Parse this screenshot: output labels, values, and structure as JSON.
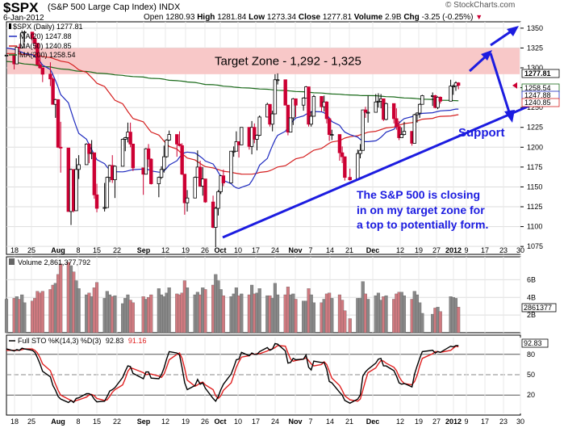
{
  "header": {
    "symbol": "$SPX",
    "description": "(S&P 500 Large Cap Index) INDX",
    "date": "6-Jan-2012",
    "open_label": "Open",
    "open": "1280.93",
    "high_label": "High",
    "high": "1281.84",
    "low_label": "Low",
    "low": "1273.34",
    "close_label": "Close",
    "close": "1277.81",
    "volume_label": "Volume",
    "volume": "2.9B",
    "chg_label": "Chg",
    "chg": "-3.25 (-0.25%)",
    "brand": "© StockCharts.com"
  },
  "colors": {
    "up_bar": "#000000",
    "down_bar": "#cc0033",
    "ma20": "#1f2bbf",
    "ma50": "#d52020",
    "ma200": "#1a6a1a",
    "target_zone": "#f8c8c8",
    "annotation": "#1c1ce0",
    "volume_up": "#888888",
    "volume_down": "#d07a80",
    "sto_k": "#000000",
    "sto_d": "#e02020"
  },
  "legend": {
    "price": "$SPX (Daily) 1277.81",
    "ma20": "MA(20) 1247.88",
    "ma50": "MA(50) 1240.85",
    "ma200": "MA(200) 1258.54"
  },
  "annotations": {
    "target_zone": "Target Zone - 1,292 - 1,325",
    "support": "Support",
    "note_line1": "The S&P 500 is closing",
    "note_line2": "in on my target zone for",
    "note_line3": "a top to potentially form."
  },
  "price_axis": {
    "ticks": [
      "1350",
      "1325",
      "1300",
      "1275",
      "1250",
      "1225",
      "1200",
      "1175",
      "1150",
      "1125",
      "1100",
      "1075"
    ],
    "tags": [
      "1277.81",
      "1258.54",
      "1247.88",
      "1240.85"
    ]
  },
  "x_axis": {
    "labels": [
      "18",
      "25",
      "Aug",
      "8",
      "15",
      "22",
      "Sep",
      "12",
      "19",
      "26",
      "Oct",
      "10",
      "17",
      "24",
      "Nov",
      "7",
      "14",
      "21",
      "Dec",
      "12",
      "19",
      "27",
      "2012",
      "9",
      "17",
      "23",
      "30"
    ]
  },
  "volume_panel": {
    "label": "Volume 2,861,377,792",
    "ticks": [
      "6B",
      "4B",
      "2B"
    ],
    "tag": "2861377"
  },
  "sto_panel": {
    "label_prefix": "Full STO %K(14,3) %D(3)",
    "k_value": "92.83",
    "d_value": "91.16",
    "ticks": [
      "80",
      "50",
      "20"
    ],
    "tag": "92.83"
  },
  "chart_data": {
    "type": "candlestick",
    "title": "$SPX (S&P 500 Large Cap Index) INDX",
    "x_range": [
      "2011-07-15",
      "2012-01-30"
    ],
    "ylim": [
      1065,
      1358
    ],
    "target_zone": [
      1292,
      1325
    ],
    "x": [
      "2011-07-15",
      "2011-07-18",
      "2011-07-19",
      "2011-07-20",
      "2011-07-21",
      "2011-07-22",
      "2011-07-25",
      "2011-07-26",
      "2011-07-27",
      "2011-07-28",
      "2011-07-29",
      "2011-08-01",
      "2011-08-02",
      "2011-08-03",
      "2011-08-04",
      "2011-08-05",
      "2011-08-08",
      "2011-08-09",
      "2011-08-10",
      "2011-08-11",
      "2011-08-12",
      "2011-08-15",
      "2011-08-16",
      "2011-08-17",
      "2011-08-18",
      "2011-08-19",
      "2011-08-22",
      "2011-08-23",
      "2011-08-24",
      "2011-08-25",
      "2011-08-26",
      "2011-08-29",
      "2011-08-30",
      "2011-08-31",
      "2011-09-01",
      "2011-09-02",
      "2011-09-06",
      "2011-09-07",
      "2011-09-08",
      "2011-09-09",
      "2011-09-12",
      "2011-09-13",
      "2011-09-14",
      "2011-09-15",
      "2011-09-16",
      "2011-09-19",
      "2011-09-20",
      "2011-09-21",
      "2011-09-22",
      "2011-09-23",
      "2011-09-26",
      "2011-09-27",
      "2011-09-28",
      "2011-09-29",
      "2011-09-30",
      "2011-10-03",
      "2011-10-04",
      "2011-10-05",
      "2011-10-06",
      "2011-10-07",
      "2011-10-10",
      "2011-10-11",
      "2011-10-12",
      "2011-10-13",
      "2011-10-14",
      "2011-10-17",
      "2011-10-18",
      "2011-10-19",
      "2011-10-20",
      "2011-10-21",
      "2011-10-24",
      "2011-10-25",
      "2011-10-26",
      "2011-10-27",
      "2011-10-28",
      "2011-10-31",
      "2011-11-01",
      "2011-11-02",
      "2011-11-03",
      "2011-11-04",
      "2011-11-07",
      "2011-11-08",
      "2011-11-09",
      "2011-11-10",
      "2011-11-11",
      "2011-11-14",
      "2011-11-15",
      "2011-11-16",
      "2011-11-17",
      "2011-11-18",
      "2011-11-21",
      "2011-11-22",
      "2011-11-23",
      "2011-11-25",
      "2011-11-28",
      "2011-11-29",
      "2011-11-30",
      "2011-12-01",
      "2011-12-02",
      "2011-12-05",
      "2011-12-06",
      "2011-12-07",
      "2011-12-08",
      "2011-12-09",
      "2011-12-12",
      "2011-12-13",
      "2011-12-14",
      "2011-12-15",
      "2011-12-16",
      "2011-12-19",
      "2011-12-20",
      "2011-12-21",
      "2011-12-22",
      "2011-12-23",
      "2011-12-27",
      "2011-12-28",
      "2011-12-29",
      "2011-12-30",
      "2012-01-03",
      "2012-01-04",
      "2012-01-05",
      "2012-01-06"
    ],
    "close": [
      1316,
      1305,
      1326,
      1325,
      1344,
      1345,
      1337,
      1331,
      1304,
      1300,
      1292,
      1286,
      1254,
      1260,
      1200,
      1199,
      1119,
      1172,
      1120,
      1172,
      1178,
      1204,
      1192,
      1193,
      1140,
      1123,
      1124,
      1162,
      1177,
      1159,
      1176,
      1210,
      1212,
      1219,
      1204,
      1174,
      1166,
      1198,
      1185,
      1154,
      1162,
      1172,
      1188,
      1209,
      1216,
      1204,
      1202,
      1166,
      1130,
      1136,
      1162,
      1175,
      1151,
      1160,
      1131,
      1099,
      1123,
      1144,
      1164,
      1155,
      1195,
      1195,
      1207,
      1203,
      1225,
      1201,
      1225,
      1210,
      1215,
      1238,
      1254,
      1229,
      1242,
      1285,
      1285,
      1253,
      1219,
      1237,
      1261,
      1253,
      1262,
      1276,
      1229,
      1239,
      1264,
      1251,
      1257,
      1236,
      1216,
      1216,
      1193,
      1188,
      1162,
      1159,
      1192,
      1196,
      1247,
      1244,
      1244,
      1257,
      1258,
      1261,
      1235,
      1255,
      1236,
      1226,
      1212,
      1216,
      1220,
      1205,
      1241,
      1243,
      1254,
      1265,
      1265,
      1250,
      1263,
      1258,
      1277,
      1277,
      1281,
      1278
    ],
    "high": [
      1320,
      1316,
      1328,
      1330,
      1347,
      1347,
      1345,
      1339,
      1330,
      1316,
      1300,
      1307,
      1288,
      1261,
      1260,
      1232,
      1199,
      1173,
      1172,
      1186,
      1190,
      1205,
      1205,
      1209,
      1190,
      1154,
      1155,
      1163,
      1178,
      1190,
      1177,
      1211,
      1213,
      1231,
      1231,
      1203,
      1174,
      1199,
      1204,
      1186,
      1163,
      1176,
      1202,
      1210,
      1221,
      1216,
      1220,
      1205,
      1165,
      1146,
      1163,
      1196,
      1183,
      1175,
      1159,
      1139,
      1125,
      1146,
      1165,
      1172,
      1195,
      1201,
      1220,
      1204,
      1225,
      1225,
      1233,
      1230,
      1216,
      1240,
      1256,
      1254,
      1246,
      1292,
      1293,
      1284,
      1253,
      1237,
      1262,
      1260,
      1263,
      1277,
      1266,
      1245,
      1266,
      1264,
      1265,
      1258,
      1235,
      1222,
      1216,
      1201,
      1187,
      1173,
      1197,
      1204,
      1247,
      1251,
      1265,
      1267,
      1268,
      1267,
      1260,
      1256,
      1255,
      1249,
      1233,
      1225,
      1232,
      1220,
      1242,
      1244,
      1255,
      1266,
      1269,
      1266,
      1264,
      1264,
      1285,
      1279,
      1283,
      1282
    ],
    "low": [
      1308,
      1298,
      1306,
      1318,
      1325,
      1332,
      1331,
      1323,
      1304,
      1299,
      1282,
      1277,
      1254,
      1237,
      1199,
      1168,
      1119,
      1102,
      1118,
      1128,
      1160,
      1178,
      1180,
      1185,
      1135,
      1118,
      1119,
      1125,
      1156,
      1155,
      1136,
      1178,
      1195,
      1206,
      1200,
      1170,
      1140,
      1167,
      1175,
      1153,
      1137,
      1160,
      1168,
      1187,
      1208,
      1188,
      1201,
      1165,
      1115,
      1119,
      1137,
      1171,
      1150,
      1139,
      1130,
      1098,
      1074,
      1114,
      1141,
      1151,
      1165,
      1188,
      1196,
      1187,
      1207,
      1197,
      1191,
      1205,
      1196,
      1214,
      1238,
      1226,
      1220,
      1242,
      1279,
      1253,
      1215,
      1221,
      1228,
      1238,
      1246,
      1262,
      1226,
      1226,
      1241,
      1245,
      1245,
      1230,
      1208,
      1209,
      1183,
      1180,
      1158,
      1158,
      1172,
      1186,
      1202,
      1237,
      1231,
      1244,
      1250,
      1249,
      1233,
      1234,
      1230,
      1222,
      1209,
      1212,
      1215,
      1202,
      1211,
      1231,
      1237,
      1254,
      1252,
      1249,
      1248,
      1255,
      1259,
      1266,
      1271,
      1273
    ]
  },
  "ma_data": {
    "ma20": [
      1325,
      1323,
      1321,
      1320,
      1318,
      1316,
      1313,
      1309,
      1303,
      1296,
      1287,
      1277,
      1265,
      1252,
      1239,
      1227,
      1216,
      1207,
      1199,
      1191,
      1183,
      1177,
      1172,
      1170,
      1169,
      1169,
      1170,
      1171,
      1172,
      1173,
      1172,
      1170,
      1168,
      1169,
      1173,
      1178,
      1185,
      1190,
      1193,
      1194,
      1192,
      1189,
      1186,
      1182,
      1177,
      1170,
      1163,
      1157,
      1152,
      1149,
      1148,
      1150,
      1155,
      1162,
      1170,
      1180,
      1191,
      1201,
      1210,
      1217,
      1223,
      1229,
      1234,
      1238,
      1241,
      1243,
      1245,
      1245,
      1244,
      1241,
      1236,
      1230,
      1224,
      1219,
      1215,
      1211,
      1208,
      1207,
      1207,
      1209,
      1212,
      1216,
      1220,
      1225,
      1230,
      1234,
      1237,
      1240,
      1241,
      1242,
      1243,
      1244,
      1245,
      1246,
      1247,
      1248,
      1248
    ],
    "ma50": [
      1318,
      1318,
      1317,
      1317,
      1316,
      1315,
      1313,
      1311,
      1309,
      1306,
      1302,
      1297,
      1291,
      1285,
      1278,
      1270,
      1262,
      1254,
      1245,
      1237,
      1229,
      1221,
      1214,
      1207,
      1201,
      1195,
      1190,
      1185,
      1181,
      1177,
      1174,
      1172,
      1170,
      1168,
      1167,
      1166,
      1166,
      1167,
      1169,
      1171,
      1174,
      1177,
      1181,
      1185,
      1189,
      1193,
      1197,
      1201,
      1205,
      1208,
      1211,
      1214,
      1216,
      1218,
      1220,
      1222,
      1224,
      1226,
      1228,
      1230,
      1232,
      1234,
      1236,
      1238,
      1239,
      1240,
      1241
    ],
    "ma200": [
      1308,
      1306,
      1304,
      1302,
      1300,
      1298,
      1296,
      1295,
      1293,
      1292,
      1290,
      1289,
      1287,
      1286,
      1284,
      1283,
      1281,
      1279,
      1278,
      1276,
      1275,
      1274,
      1273,
      1272,
      1271,
      1270,
      1269,
      1268,
      1267,
      1266,
      1265,
      1265,
      1264,
      1263,
      1262,
      1261,
      1260,
      1259,
      1258.5
    ]
  },
  "volume_data": {
    "unit": "billions",
    "values": [
      3.8,
      3.9,
      4.1,
      3.8,
      4.3,
      3.4,
      3.6,
      3.9,
      4.7,
      4.5,
      4.7,
      4.9,
      5.4,
      5.6,
      6.6,
      7.8,
      8.0,
      7.6,
      6.9,
      5.9,
      5.0,
      4.3,
      4.5,
      4.1,
      5.1,
      5.7,
      3.9,
      4.7,
      4.3,
      4.1,
      4.2,
      3.3,
      3.9,
      4.3,
      3.7,
      3.4,
      4.1,
      3.8,
      4.0,
      4.3,
      5.0,
      4.3,
      4.1,
      4.5,
      5.1,
      4.4,
      4.3,
      4.5,
      5.9,
      5.1,
      4.3,
      4.6,
      4.3,
      5.1,
      4.9,
      5.4,
      6.6,
      5.9,
      4.9,
      4.2,
      4.1,
      4.4,
      5.1,
      4.2,
      4.4,
      4.3,
      5.4,
      4.4,
      4.5,
      5.0,
      4.2,
      4.2,
      3.9,
      5.6,
      4.3,
      4.3,
      5.2,
      4.3,
      4.4,
      3.8,
      3.6,
      3.6,
      5.0,
      4.3,
      3.4,
      3.4,
      3.8,
      4.4,
      4.5,
      3.9,
      4.3,
      3.7,
      2.5,
      1.6,
      3.9,
      3.9,
      5.8,
      4.4,
      3.8,
      4.2,
      4.5,
      3.7,
      4.1,
      4.2,
      3.8,
      4.4,
      4.6,
      4.6,
      4.2,
      3.8,
      4.7,
      4.3,
      3.4,
      2.2,
      2.1,
      2.8,
      2.9,
      2.4,
      4.1,
      4.0,
      3.9,
      2.9
    ]
  },
  "sto_data": {
    "k": [
      88,
      85,
      87,
      86,
      89,
      88,
      86,
      83,
      75,
      66,
      55,
      47,
      34,
      27,
      18,
      14,
      9,
      12,
      9,
      15,
      16,
      22,
      22,
      20,
      14,
      10,
      11,
      18,
      26,
      28,
      31,
      46,
      55,
      63,
      62,
      52,
      44,
      54,
      54,
      45,
      44,
      50,
      60,
      73,
      84,
      82,
      79,
      60,
      38,
      28,
      34,
      43,
      36,
      38,
      30,
      15,
      11,
      18,
      28,
      36,
      51,
      61,
      72,
      73,
      83,
      78,
      82,
      80,
      80,
      84,
      90,
      86,
      88,
      96,
      95,
      85,
      67,
      68,
      74,
      72,
      73,
      79,
      61,
      57,
      70,
      68,
      68,
      58,
      40,
      38,
      24,
      20,
      12,
      8,
      14,
      20,
      48,
      54,
      58,
      67,
      73,
      74,
      63,
      63,
      56,
      48,
      38,
      36,
      37,
      32,
      51,
      63,
      74,
      84,
      86,
      82,
      84,
      83,
      92,
      91,
      93,
      92.83
    ],
    "d": [
      86,
      86,
      86,
      86,
      87,
      88,
      88,
      86,
      82,
      75,
      66,
      56,
      46,
      36,
      27,
      20,
      14,
      12,
      10,
      12,
      13,
      17,
      20,
      21,
      19,
      15,
      12,
      13,
      18,
      24,
      28,
      35,
      44,
      55,
      60,
      59,
      53,
      50,
      51,
      51,
      48,
      46,
      51,
      61,
      72,
      80,
      82,
      74,
      59,
      42,
      33,
      35,
      38,
      39,
      35,
      28,
      19,
      15,
      19,
      27,
      38,
      49,
      61,
      69,
      76,
      78,
      81,
      80,
      81,
      81,
      85,
      87,
      88,
      90,
      93,
      92,
      82,
      73,
      70,
      71,
      73,
      75,
      71,
      66,
      63,
      65,
      69,
      65,
      55,
      45,
      34,
      27,
      19,
      13,
      11,
      14,
      27,
      41,
      53,
      60,
      66,
      71,
      70,
      67,
      61,
      56,
      47,
      41,
      37,
      35,
      40,
      49,
      63,
      74,
      81,
      84,
      84,
      83,
      86,
      89,
      92,
      91.16
    ]
  }
}
